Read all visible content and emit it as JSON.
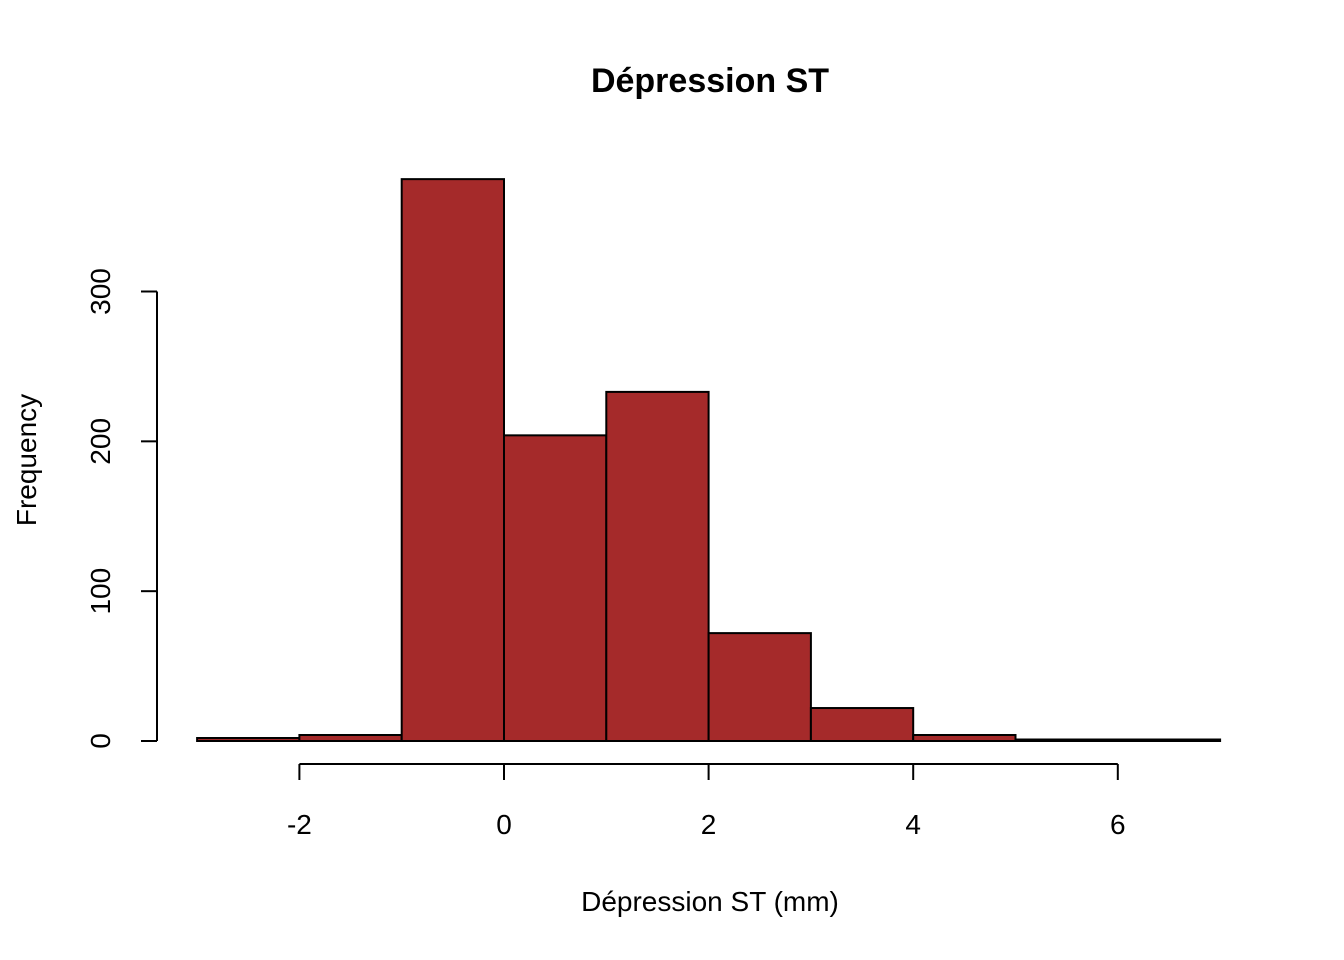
{
  "chart_data": {
    "type": "bar",
    "title": "Dépression ST",
    "xlabel": "Dépression ST (mm)",
    "ylabel": "Frequency",
    "bins": [
      {
        "from": -3,
        "to": -2,
        "count": 2
      },
      {
        "from": -2,
        "to": -1,
        "count": 4
      },
      {
        "from": -1,
        "to": 0,
        "count": 375
      },
      {
        "from": 0,
        "to": 1,
        "count": 204
      },
      {
        "from": 1,
        "to": 2,
        "count": 233
      },
      {
        "from": 2,
        "to": 3,
        "count": 72
      },
      {
        "from": 3,
        "to": 4,
        "count": 22
      },
      {
        "from": 4,
        "to": 5,
        "count": 4
      },
      {
        "from": 5,
        "to": 6,
        "count": 1
      },
      {
        "from": 6,
        "to": 7,
        "count": 1
      }
    ],
    "xticks": [
      "-2",
      "0",
      "2",
      "4",
      "6"
    ],
    "yticks": [
      "0",
      "100",
      "200",
      "300"
    ],
    "xlim": [
      -3,
      7
    ],
    "ylim": [
      0,
      375
    ],
    "bar_color": "#A52A2A",
    "grid": false
  }
}
